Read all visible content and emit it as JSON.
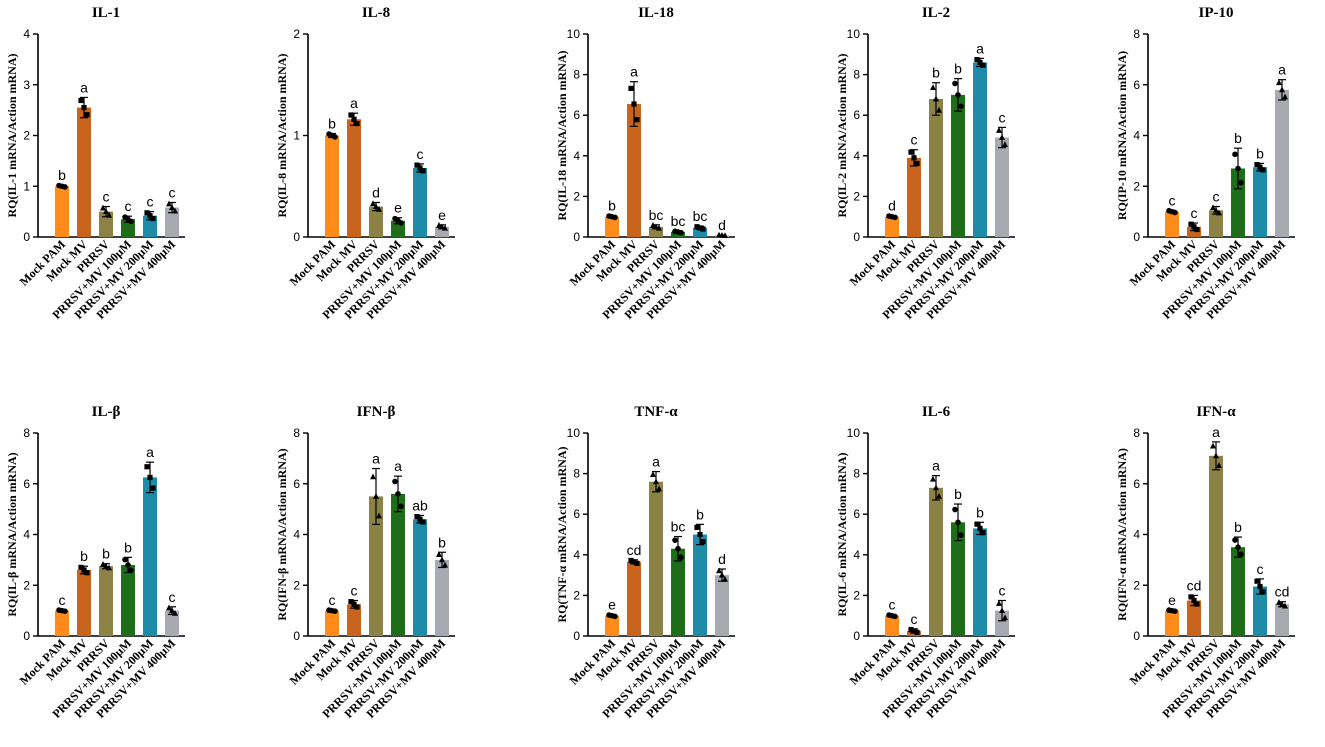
{
  "figure": {
    "categories": [
      "Mock PAM",
      "Mock MV",
      "PRRSV",
      "PRRSV+MV 100μM",
      "PRRSV+MV 200μM",
      "PRRSV+MV 400μM"
    ],
    "bar_colors": [
      "#FF8C1A",
      "#C8641E",
      "#8C8246",
      "#1E6E19",
      "#1E8CA8",
      "#A9A9B1"
    ]
  },
  "chart_data": [
    {
      "type": "bar",
      "title": "IL-1",
      "ylabel": "RQ(IL-1 mRNA/Action mRNA)",
      "ylim": [
        0,
        4
      ],
      "yticks": [
        0,
        1,
        2,
        3,
        4
      ],
      "categories": [
        "Mock PAM",
        "Mock MV",
        "PRRSV",
        "PRRSV+MV 100μM",
        "PRRSV+MV 200μM",
        "PRRSV+MV 400μM"
      ],
      "values": [
        1.0,
        2.55,
        0.5,
        0.35,
        0.42,
        0.58
      ],
      "errors": [
        0.02,
        0.2,
        0.1,
        0.06,
        0.08,
        0.1
      ],
      "letters": [
        "b",
        "a",
        "c",
        "c",
        "c",
        "c"
      ]
    },
    {
      "type": "bar",
      "title": "IL-8",
      "ylabel": "RQ(IL-8 mRNA/Action mRNA)",
      "ylim": [
        0,
        2
      ],
      "yticks": [
        0,
        1,
        2
      ],
      "categories": [
        "Mock PAM",
        "Mock MV",
        "PRRSV",
        "PRRSV+MV 100μM",
        "PRRSV+MV 200μM",
        "PRRSV+MV 400μM"
      ],
      "values": [
        1.0,
        1.16,
        0.3,
        0.16,
        0.68,
        0.1
      ],
      "errors": [
        0.02,
        0.06,
        0.04,
        0.03,
        0.04,
        0.02
      ],
      "letters": [
        "b",
        "a",
        "d",
        "e",
        "c",
        "e"
      ]
    },
    {
      "type": "bar",
      "title": "IL-18",
      "ylabel": "RQ(IL-18 mRNA/Action mRNA)",
      "ylim": [
        0,
        10
      ],
      "yticks": [
        0,
        2,
        4,
        6,
        8,
        10
      ],
      "categories": [
        "Mock PAM",
        "Mock MV",
        "PRRSV",
        "PRRSV+MV 100μM",
        "PRRSV+MV 200μM",
        "PRRSV+MV 400μM"
      ],
      "values": [
        1.0,
        6.55,
        0.5,
        0.25,
        0.45,
        0.08
      ],
      "errors": [
        0.05,
        1.1,
        0.1,
        0.05,
        0.08,
        0.02
      ],
      "letters": [
        "b",
        "a",
        "bc",
        "bc",
        "bc",
        "d"
      ]
    },
    {
      "type": "bar",
      "title": "IL-2",
      "ylabel": "RQ(IL-2 mRNA/Action mRNA)",
      "ylim": [
        0,
        10
      ],
      "yticks": [
        0,
        2,
        4,
        6,
        8,
        10
      ],
      "categories": [
        "Mock PAM",
        "Mock MV",
        "PRRSV",
        "PRRSV+MV 100μM",
        "PRRSV+MV 200μM",
        "PRRSV+MV 400μM"
      ],
      "values": [
        1.0,
        3.9,
        6.8,
        7.0,
        8.6,
        4.9
      ],
      "errors": [
        0.05,
        0.4,
        0.8,
        0.8,
        0.2,
        0.5
      ],
      "letters": [
        "d",
        "c",
        "b",
        "b",
        "a",
        "c"
      ]
    },
    {
      "type": "bar",
      "title": "IP-10",
      "ylabel": "RQ(IP-10 mRNA/Action mRNA)",
      "ylim": [
        0,
        8
      ],
      "yticks": [
        0,
        2,
        4,
        6,
        8
      ],
      "categories": [
        "Mock PAM",
        "Mock MV",
        "PRRSV",
        "PRRSV+MV 100μM",
        "PRRSV+MV 200μM",
        "PRRSV+MV 400μM"
      ],
      "values": [
        1.0,
        0.4,
        1.05,
        2.7,
        2.75,
        5.8
      ],
      "errors": [
        0.05,
        0.15,
        0.15,
        0.8,
        0.15,
        0.4
      ],
      "letters": [
        "c",
        "c",
        "c",
        "b",
        "b",
        "a"
      ]
    },
    {
      "type": "bar",
      "title": "IL-β",
      "ylabel": "RQ(IL-β mRNA/Action mRNA)",
      "ylim": [
        0,
        8
      ],
      "yticks": [
        0,
        2,
        4,
        6,
        8
      ],
      "categories": [
        "Mock PAM",
        "Mock MV",
        "PRRSV",
        "PRRSV+MV 100μM",
        "PRRSV+MV 200μM",
        "PRRSV+MV 400μM"
      ],
      "values": [
        1.0,
        2.6,
        2.75,
        2.8,
        6.25,
        1.0
      ],
      "errors": [
        0.03,
        0.15,
        0.1,
        0.3,
        0.6,
        0.15
      ],
      "letters": [
        "c",
        "b",
        "b",
        "b",
        "a",
        "c"
      ]
    },
    {
      "type": "bar",
      "title": "IFN-β",
      "ylabel": "RQ(IFN-β mRNA/Action mRNA)",
      "ylim": [
        0,
        8
      ],
      "yticks": [
        0,
        2,
        4,
        6,
        8
      ],
      "categories": [
        "Mock PAM",
        "Mock MV",
        "PRRSV",
        "PRRSV+MV 100μM",
        "PRRSV+MV 200μM",
        "PRRSV+MV 400μM"
      ],
      "values": [
        1.0,
        1.25,
        5.5,
        5.6,
        4.6,
        3.0
      ],
      "errors": [
        0.03,
        0.15,
        1.1,
        0.7,
        0.15,
        0.3
      ],
      "letters": [
        "c",
        "c",
        "a",
        "a",
        "ab",
        "b"
      ]
    },
    {
      "type": "bar",
      "title": "TNF-α",
      "ylabel": "RQ(TNF-α mRNA/Action mRNA)",
      "ylim": [
        0,
        10
      ],
      "yticks": [
        0,
        2,
        4,
        6,
        8,
        10
      ],
      "categories": [
        "Mock PAM",
        "Mock MV",
        "PRRSV",
        "PRRSV+MV 100μM",
        "PRRSV+MV 200μM",
        "PRRSV+MV 400μM"
      ],
      "values": [
        1.0,
        3.65,
        7.6,
        4.3,
        5.0,
        3.0
      ],
      "errors": [
        0.05,
        0.1,
        0.5,
        0.6,
        0.5,
        0.3
      ],
      "letters": [
        "e",
        "cd",
        "a",
        "bc",
        "b",
        "d"
      ]
    },
    {
      "type": "bar",
      "title": "IL-6",
      "ylabel": "RQ(IL-6 mRNA/Action mRNA)",
      "ylim": [
        0,
        10
      ],
      "yticks": [
        0,
        2,
        4,
        6,
        8,
        10
      ],
      "categories": [
        "Mock PAM",
        "Mock MV",
        "PRRSV",
        "PRRSV+MV 100μM",
        "PRRSV+MV 200μM",
        "PRRSV+MV 400μM"
      ],
      "values": [
        1.0,
        0.25,
        7.3,
        5.6,
        5.3,
        1.25
      ],
      "errors": [
        0.05,
        0.1,
        0.6,
        0.9,
        0.3,
        0.5
      ],
      "letters": [
        "c",
        "c",
        "a",
        "b",
        "b",
        "c"
      ]
    },
    {
      "type": "bar",
      "title": "IFN-α",
      "ylabel": "RQ(IFN-α mRNA/Action mRNA)",
      "ylim": [
        0,
        8
      ],
      "yticks": [
        0,
        2,
        4,
        6,
        8
      ],
      "categories": [
        "Mock PAM",
        "Mock MV",
        "PRRSV",
        "PRRSV+MV 100μM",
        "PRRSV+MV 200μM",
        "PRRSV+MV 400μM"
      ],
      "values": [
        1.0,
        1.4,
        7.1,
        3.5,
        1.95,
        1.25
      ],
      "errors": [
        0.03,
        0.2,
        0.55,
        0.4,
        0.3,
        0.1
      ],
      "letters": [
        "e",
        "cd",
        "a",
        "b",
        "c",
        "cd"
      ]
    }
  ]
}
